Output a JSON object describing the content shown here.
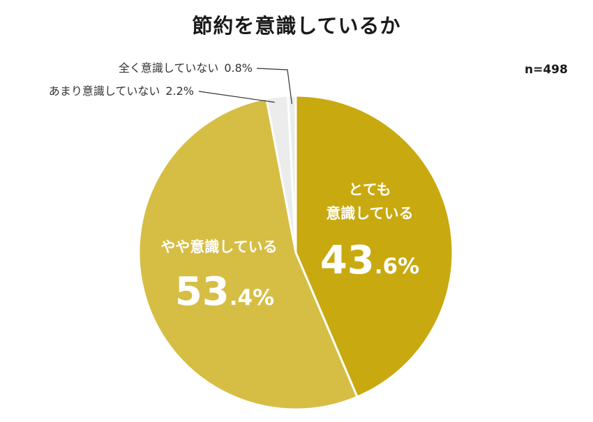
{
  "sample_size": "n=498",
  "colors": {
    "slice_very": "#c8a90f",
    "slice_somewhat": "#d6be44",
    "slice_not_much": "#ececec",
    "slice_not_at_all": "#ececec",
    "label_on_slice": "#ffffff",
    "leader_line": "#333333"
  },
  "chart_data": {
    "type": "pie",
    "title": "節約を意識しているか",
    "slices": [
      {
        "label_lines": [
          "とても",
          "意識している"
        ],
        "value": 43.6,
        "value_big": "43",
        "value_small": ".6%"
      },
      {
        "label_lines": [
          "やや意識している"
        ],
        "value": 53.4,
        "value_big": "53",
        "value_small": ".4%"
      },
      {
        "label": "あまり意識していない",
        "value": 2.2,
        "value_text": "2.2%"
      },
      {
        "label": "全く意識していない",
        "value": 0.8,
        "value_text": "0.8%"
      }
    ]
  }
}
